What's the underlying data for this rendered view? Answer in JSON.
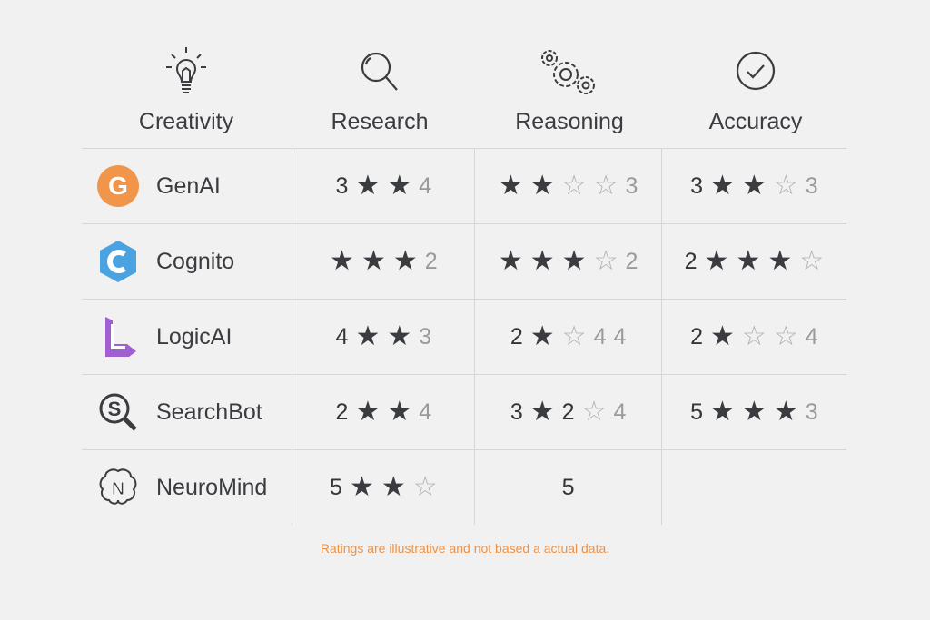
{
  "headers": [
    {
      "label": "Creativity",
      "icon": "lightbulb-icon"
    },
    {
      "label": "Research",
      "icon": "magnifier-icon"
    },
    {
      "label": "Reasoning",
      "icon": "gears-icon"
    },
    {
      "label": "Accuracy",
      "icon": "check-circle-icon"
    }
  ],
  "colors": {
    "genai": "#f0954a",
    "cognito": "#4aa3e0",
    "logicai": "#a060d0",
    "footnote": "#ef9145"
  },
  "rows": [
    {
      "name": "GenAI",
      "logo": "genai-logo",
      "cells": [
        [
          {
            "t": "n",
            "v": "3"
          },
          {
            "t": "s",
            "v": "★"
          },
          {
            "t": "s",
            "v": "★"
          },
          {
            "t": "g",
            "v": "4"
          }
        ],
        [
          {
            "t": "s",
            "v": "★"
          },
          {
            "t": "s",
            "v": "★"
          },
          {
            "t": "e",
            "v": "☆"
          },
          {
            "t": "e",
            "v": "☆"
          },
          {
            "t": "g",
            "v": "3"
          }
        ],
        [
          {
            "t": "n",
            "v": "3"
          },
          {
            "t": "s",
            "v": "★"
          },
          {
            "t": "s",
            "v": "★"
          },
          {
            "t": "e",
            "v": "☆"
          },
          {
            "t": "g",
            "v": "3"
          }
        ]
      ]
    },
    {
      "name": "Cognito",
      "logo": "cognito-logo",
      "cells": [
        [
          {
            "t": "s",
            "v": "★"
          },
          {
            "t": "s",
            "v": "★"
          },
          {
            "t": "s",
            "v": "★"
          },
          {
            "t": "g",
            "v": "2"
          }
        ],
        [
          {
            "t": "s",
            "v": "★"
          },
          {
            "t": "s",
            "v": "★"
          },
          {
            "t": "s",
            "v": "★"
          },
          {
            "t": "e",
            "v": "☆"
          },
          {
            "t": "g",
            "v": "2"
          }
        ],
        [
          {
            "t": "n",
            "v": "2"
          },
          {
            "t": "s",
            "v": "★"
          },
          {
            "t": "s",
            "v": "★"
          },
          {
            "t": "s",
            "v": "★"
          },
          {
            "t": "e",
            "v": "☆"
          }
        ]
      ]
    },
    {
      "name": "LogicAI",
      "logo": "logicai-logo",
      "cells": [
        [
          {
            "t": "n",
            "v": "4"
          },
          {
            "t": "s",
            "v": "★"
          },
          {
            "t": "s",
            "v": "★"
          },
          {
            "t": "g",
            "v": "3"
          }
        ],
        [
          {
            "t": "n",
            "v": "2"
          },
          {
            "t": "s",
            "v": "★"
          },
          {
            "t": "e",
            "v": "☆"
          },
          {
            "t": "g",
            "v": "4"
          },
          {
            "t": "g",
            "v": "4"
          }
        ],
        [
          {
            "t": "n",
            "v": "2"
          },
          {
            "t": "s",
            "v": "★"
          },
          {
            "t": "e",
            "v": "☆"
          },
          {
            "t": "e",
            "v": "☆"
          },
          {
            "t": "g",
            "v": "4"
          }
        ]
      ]
    },
    {
      "name": "SearchBot",
      "logo": "searchbot-logo",
      "cells": [
        [
          {
            "t": "n",
            "v": "2"
          },
          {
            "t": "s",
            "v": "★"
          },
          {
            "t": "s",
            "v": "★"
          },
          {
            "t": "g",
            "v": "4"
          }
        ],
        [
          {
            "t": "n",
            "v": "3"
          },
          {
            "t": "s",
            "v": "★"
          },
          {
            "t": "n",
            "v": "2"
          },
          {
            "t": "e",
            "v": "☆"
          },
          {
            "t": "g",
            "v": "4"
          }
        ],
        [
          {
            "t": "n",
            "v": "5"
          },
          {
            "t": "s",
            "v": "★"
          },
          {
            "t": "s",
            "v": "★"
          },
          {
            "t": "s",
            "v": "★"
          },
          {
            "t": "g",
            "v": "3"
          }
        ]
      ]
    },
    {
      "name": "NeuroMind",
      "logo": "neuromind-logo",
      "cells": [
        [
          {
            "t": "n",
            "v": "5"
          },
          {
            "t": "s",
            "v": "★"
          },
          {
            "t": "s",
            "v": "★"
          },
          {
            "t": "e",
            "v": "☆"
          }
        ],
        [
          {
            "t": "n",
            "v": "5"
          }
        ],
        []
      ]
    }
  ],
  "footnote": "Ratings are illustrative and not based a actual data."
}
